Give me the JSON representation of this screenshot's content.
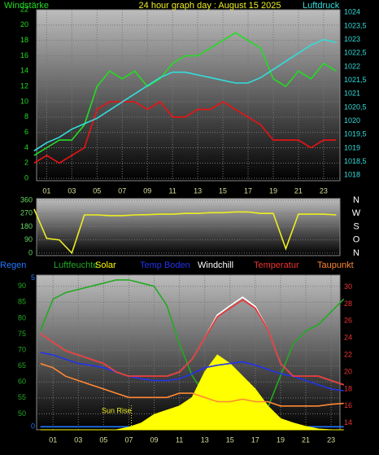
{
  "chart_data": [
    {
      "type": "line",
      "title": "24 hour graph day : August 15 2025",
      "ylabel": "Windstärke",
      "y2label": "Luftdruck",
      "grid": true,
      "x": [
        0,
        1,
        2,
        3,
        4,
        5,
        6,
        7,
        8,
        9,
        10,
        11,
        12,
        13,
        14,
        15,
        16,
        17,
        18,
        19,
        20,
        21,
        22,
        23,
        24
      ],
      "xlim": [
        0.2,
        24.3
      ],
      "xticks": [
        {
          "value": 1,
          "label": "01"
        },
        {
          "value": 3,
          "label": "03"
        },
        {
          "value": 5,
          "label": "05"
        },
        {
          "value": 7,
          "label": "07"
        },
        {
          "value": 9,
          "label": "09"
        },
        {
          "value": 11,
          "label": "11"
        },
        {
          "value": 13,
          "label": "13"
        },
        {
          "value": 15,
          "label": "15"
        },
        {
          "value": 17,
          "label": "17"
        },
        {
          "value": 19,
          "label": "19"
        },
        {
          "value": 21,
          "label": "21"
        },
        {
          "value": 23,
          "label": "23"
        }
      ],
      "ylim": [
        -0.3,
        22
      ],
      "yticks": [
        0,
        2,
        4,
        6,
        8,
        10,
        12,
        14,
        16,
        18,
        20,
        22
      ],
      "y2lim": [
        1017.8,
        1024.1
      ],
      "y2ticks": [
        1018,
        {
          "value": 1018.5,
          "label": "1018,5"
        },
        1019,
        {
          "value": 1019.5,
          "label": "1019,5"
        },
        1020,
        {
          "value": 1020.5,
          "label": "1020,5"
        },
        1021,
        {
          "value": 1021.5,
          "label": "1021,5"
        },
        1022,
        {
          "value": 1022.5,
          "label": "1022,5"
        },
        1023,
        {
          "value": 1023.5,
          "label": "1023,5"
        },
        1024
      ],
      "series": [
        {
          "color": "#22dd22",
          "axis": "y",
          "values": [
            3,
            4,
            5,
            5,
            7,
            12,
            14,
            13,
            14,
            12,
            13,
            15,
            16,
            16,
            17,
            18,
            19,
            18,
            17,
            13,
            12,
            14,
            13,
            15,
            14
          ]
        },
        {
          "color": "#ee1111",
          "axis": "y",
          "values": [
            2,
            3,
            2,
            3,
            4,
            9,
            10,
            10,
            10,
            9,
            10,
            8,
            8,
            9,
            9,
            10,
            9,
            8,
            7,
            5,
            5,
            5,
            4,
            5,
            5
          ]
        },
        {
          "color": "#33dddd",
          "axis": "y2",
          "values": [
            1018.9,
            1019.2,
            1019.4,
            1019.7,
            1019.9,
            1020.1,
            1020.4,
            1020.7,
            1021.0,
            1021.3,
            1021.6,
            1021.8,
            1021.8,
            1021.7,
            1021.6,
            1021.5,
            1021.4,
            1021.4,
            1021.6,
            1021.9,
            1022.2,
            1022.5,
            1022.8,
            1023.0,
            1022.9
          ]
        }
      ]
    },
    {
      "type": "line",
      "grid": true,
      "x": [
        0,
        1,
        2,
        3,
        4,
        5,
        6,
        7,
        8,
        9,
        10,
        11,
        12,
        13,
        14,
        15,
        16,
        17,
        18,
        19,
        20,
        21,
        22,
        23,
        24
      ],
      "xlim": [
        0.2,
        24.3
      ],
      "ylim": [
        -17,
        371
      ],
      "yticks": [
        0,
        90,
        180,
        270,
        360
      ],
      "y2lim": [
        -17,
        371
      ],
      "y2ticks": [
        {
          "value": 360,
          "label": "N"
        },
        {
          "value": 270,
          "label": "W"
        },
        {
          "value": 180,
          "label": "S"
        },
        {
          "value": 90,
          "label": "O"
        },
        {
          "value": 0,
          "label": "N"
        }
      ],
      "series": [
        {
          "color": "#eeee22",
          "axis": "y",
          "values": [
            300,
            100,
            90,
            0,
            260,
            260,
            255,
            255,
            260,
            262,
            265,
            265,
            270,
            270,
            275,
            275,
            280,
            280,
            270,
            270,
            30,
            265,
            265,
            265,
            260
          ]
        }
      ]
    },
    {
      "type": "line",
      "grid": true,
      "x": [
        0,
        1,
        2,
        3,
        4,
        5,
        6,
        7,
        8,
        9,
        10,
        11,
        12,
        13,
        14,
        15,
        16,
        17,
        18,
        19,
        20,
        21,
        22,
        23,
        24
      ],
      "xlim": [
        -0.3,
        23.7
      ],
      "xticks": [
        {
          "value": 1,
          "label": "01"
        },
        {
          "value": 3,
          "label": "03"
        },
        {
          "value": 5,
          "label": "05"
        },
        {
          "value": 7,
          "label": "07"
        },
        {
          "value": 9,
          "label": "09"
        },
        {
          "value": 11,
          "label": "11"
        },
        {
          "value": 13,
          "label": "13"
        },
        {
          "value": 15,
          "label": "15"
        },
        {
          "value": 17,
          "label": "17"
        },
        {
          "value": 19,
          "label": "19"
        },
        {
          "value": 21,
          "label": "21"
        },
        {
          "value": 23,
          "label": "23"
        }
      ],
      "ylim": [
        45,
        93.5
      ],
      "yticks": [
        50,
        55,
        60,
        65,
        70,
        75,
        80,
        85,
        90
      ],
      "y2lim": [
        13.2,
        31.4
      ],
      "y2ticks": [
        14,
        16,
        18,
        20,
        22,
        24,
        26,
        28,
        30
      ],
      "y3lim": [
        -0.1,
        5.1
      ],
      "y3ticks": [
        0,
        5
      ],
      "annotation": {
        "text": "Sun Rise",
        "x": 7.2
      },
      "series": [
        {
          "name": "Regen",
          "color": "#2277ff",
          "axis": "y3",
          "values": [
            0,
            0,
            0,
            0,
            0,
            0,
            0,
            0,
            0,
            0,
            0,
            0,
            0,
            0,
            0,
            0,
            0,
            0,
            0,
            0,
            0,
            0,
            0,
            0,
            0
          ]
        },
        {
          "name": "Luftfeuchte",
          "color": "#22aa22",
          "axis": "y",
          "values": [
            76,
            86,
            88,
            89,
            90,
            91,
            92,
            92,
            91,
            90,
            84,
            72,
            62,
            56,
            52,
            49,
            47,
            46,
            52,
            62,
            72,
            76,
            78,
            82,
            86
          ]
        },
        {
          "name": "Solar",
          "color": "#ffff00",
          "axis": "y2",
          "style": "area",
          "values": [
            13.2,
            13.2,
            13.2,
            13.2,
            13.2,
            13.2,
            13.2,
            13.5,
            14,
            15,
            15.5,
            16,
            17,
            20,
            22,
            21,
            19.5,
            18,
            16,
            14.5,
            14,
            13.6,
            13.3,
            13.2,
            13.2
          ]
        },
        {
          "name": "Temp Boden",
          "color": "#2233ee",
          "axis": "y2",
          "values": [
            22.3,
            22,
            21.5,
            21,
            20.8,
            20.5,
            20,
            19.5,
            19.2,
            19,
            19,
            19.2,
            19.8,
            20.5,
            20.8,
            21,
            21.2,
            20.8,
            20.3,
            19.8,
            19.5,
            19,
            18.5,
            18,
            17.8
          ]
        },
        {
          "name": "Windchill",
          "color": "#ffffff",
          "axis": "y2",
          "values": [
            24.5,
            23.5,
            22.5,
            22,
            21.5,
            21,
            20,
            19.5,
            19.5,
            19.5,
            19.5,
            20,
            21.5,
            24,
            26.7,
            27.8,
            28.8,
            27.7,
            25,
            21,
            19.5,
            19.5,
            19.5,
            19,
            18.5
          ]
        },
        {
          "name": "Temperatur",
          "color": "#ee3333",
          "axis": "y2",
          "values": [
            24.5,
            23.5,
            22.5,
            22,
            21.5,
            21,
            20,
            19.5,
            19.5,
            19.5,
            19.5,
            20,
            21.5,
            24,
            26.5,
            27.5,
            28.5,
            27.5,
            25,
            21,
            19.5,
            19.5,
            19.5,
            19,
            18.5
          ]
        },
        {
          "name": "Taupunkt",
          "color": "#ff8833",
          "axis": "y2",
          "values": [
            21,
            20.5,
            19.5,
            19,
            18.5,
            18,
            17.5,
            17,
            17,
            17,
            17,
            17.5,
            17.5,
            17,
            16.5,
            16.5,
            16.8,
            16.5,
            16.5,
            16,
            16,
            16,
            16,
            16.2,
            16.3
          ]
        }
      ]
    }
  ]
}
